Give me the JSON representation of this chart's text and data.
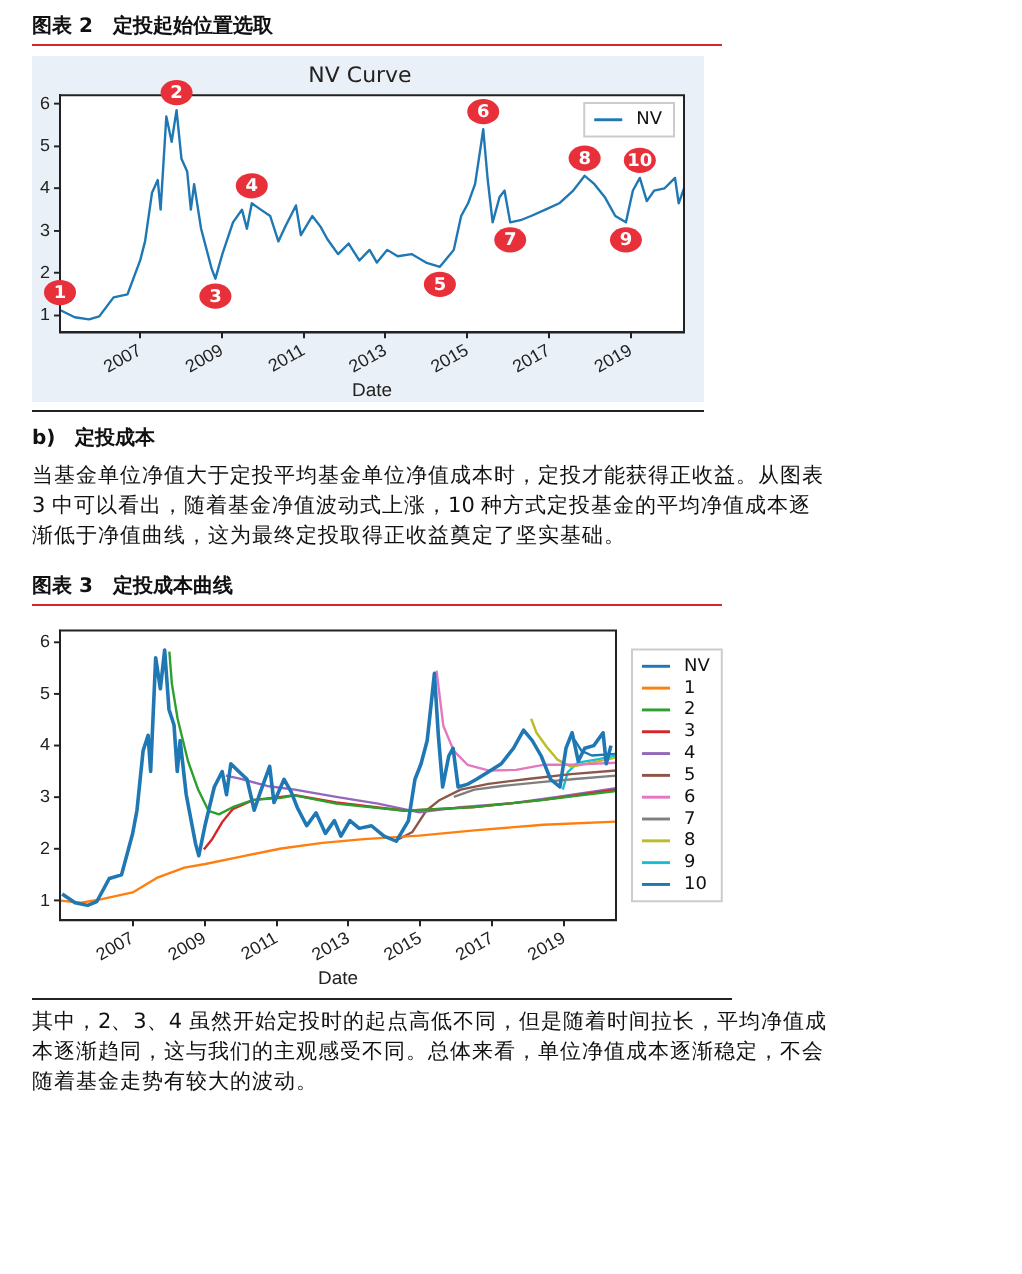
{
  "chart_data": [
    {
      "type": "line",
      "title": "图表 2　定投起始位置选取",
      "subtitle": "NV Curve",
      "xlabel": "Date",
      "xlim": [
        2005.04,
        2020.3
      ],
      "xticks": [
        2007,
        2009,
        2011,
        2013,
        2015,
        2017,
        2019
      ],
      "ylim": [
        0.6,
        6.2
      ],
      "yticks": [
        1,
        2,
        3,
        4,
        5,
        6
      ],
      "legend": "top right",
      "series": [
        {
          "name": "NV",
          "color": "#1f77b4",
          "x": [
            2005.04,
            2005.4,
            2005.75,
            2006.0,
            2006.35,
            2006.69,
            2007.0,
            2007.12,
            2007.29,
            2007.43,
            2007.5,
            2007.64,
            2007.77,
            2007.89,
            2008.01,
            2008.15,
            2008.24,
            2008.32,
            2008.49,
            2008.75,
            2008.84,
            2009.01,
            2009.27,
            2009.49,
            2009.61,
            2009.73,
            2009.95,
            2010.18,
            2010.38,
            2010.55,
            2010.81,
            2010.93,
            2011.21,
            2011.41,
            2011.58,
            2011.84,
            2012.1,
            2012.36,
            2012.61,
            2012.79,
            2013.04,
            2013.3,
            2013.64,
            2013.99,
            2014.33,
            2014.67,
            2014.85,
            2015.02,
            2015.19,
            2015.33,
            2015.39,
            2015.5,
            2015.62,
            2015.79,
            2015.91,
            2016.05,
            2016.3,
            2016.56,
            2016.91,
            2017.25,
            2017.59,
            2017.87,
            2018.11,
            2018.36,
            2018.62,
            2018.88,
            2019.05,
            2019.22,
            2019.39,
            2019.57,
            2019.82,
            2020.08,
            2020.17,
            2020.3
          ],
          "values": [
            1.13,
            0.96,
            0.91,
            0.98,
            1.43,
            1.5,
            2.3,
            2.75,
            3.9,
            4.2,
            3.5,
            5.7,
            5.1,
            5.85,
            4.7,
            4.4,
            3.5,
            4.1,
            3.05,
            2.1,
            1.87,
            2.45,
            3.2,
            3.5,
            3.05,
            3.65,
            3.5,
            3.35,
            2.75,
            3.1,
            3.6,
            2.9,
            3.35,
            3.1,
            2.8,
            2.45,
            2.7,
            2.3,
            2.55,
            2.25,
            2.55,
            2.4,
            2.45,
            2.25,
            2.15,
            2.55,
            3.35,
            3.65,
            4.1,
            5.0,
            5.4,
            4.2,
            3.2,
            3.8,
            3.95,
            3.2,
            3.25,
            3.35,
            3.5,
            3.65,
            3.95,
            4.3,
            4.1,
            3.8,
            3.35,
            3.2,
            3.95,
            4.25,
            3.7,
            3.95,
            4.0,
            4.25,
            3.65,
            4.0
          ]
        }
      ],
      "annotations": [
        {
          "text": "1",
          "x": 2005.04,
          "y": 1.13
        },
        {
          "text": "2",
          "x": 2007.89,
          "y": 5.85
        },
        {
          "text": "3",
          "x": 2008.84,
          "y": 1.87
        },
        {
          "text": "4",
          "x": 2009.73,
          "y": 3.65
        },
        {
          "text": "5",
          "x": 2014.33,
          "y": 2.15
        },
        {
          "text": "6",
          "x": 2015.39,
          "y": 5.4
        },
        {
          "text": "7",
          "x": 2016.05,
          "y": 3.2
        },
        {
          "text": "8",
          "x": 2017.87,
          "y": 4.3
        },
        {
          "text": "9",
          "x": 2018.88,
          "y": 3.2
        },
        {
          "text": "10",
          "x": 2019.22,
          "y": 4.25
        },
        "b)　定投成本",
        "当基金单位净值大于定投平均基金单位净值成本时，定投才能获得正收益。从图表 3 中可以看出，随着基金净值波动式上涨，10 种方式定投基金的平均净值成本逐渐低于净值曲线，这为最终定投取得正收益奠定了坚实基础。"
      ]
    },
    {
      "type": "line",
      "title": "图表 3　定投成本曲线",
      "xlabel": "Date",
      "xlim": [
        2004.98,
        2020.44
      ],
      "xticks": [
        2007,
        2009,
        2011,
        2013,
        2015,
        2017,
        2019
      ],
      "ylim": [
        0.62,
        6.23
      ],
      "yticks": [
        1,
        2,
        3,
        4,
        5,
        6
      ],
      "legend": "right",
      "series": [
        {
          "name": "NV",
          "color": "#1f77b4",
          "x": [
            2005.04,
            2005.4,
            2005.75,
            2006.0,
            2006.35,
            2006.69,
            2007.0,
            2007.12,
            2007.29,
            2007.43,
            2007.5,
            2007.64,
            2007.77,
            2007.89,
            2008.01,
            2008.15,
            2008.24,
            2008.32,
            2008.49,
            2008.75,
            2008.84,
            2009.01,
            2009.27,
            2009.49,
            2009.61,
            2009.73,
            2009.95,
            2010.18,
            2010.38,
            2010.55,
            2010.81,
            2010.93,
            2011.21,
            2011.41,
            2011.58,
            2011.84,
            2012.1,
            2012.36,
            2012.61,
            2012.79,
            2013.04,
            2013.3,
            2013.64,
            2013.99,
            2014.33,
            2014.67,
            2014.85,
            2015.02,
            2015.19,
            2015.33,
            2015.39,
            2015.5,
            2015.62,
            2015.79,
            2015.91,
            2016.05,
            2016.3,
            2016.56,
            2016.91,
            2017.25,
            2017.59,
            2017.87,
            2018.11,
            2018.36,
            2018.62,
            2018.88,
            2019.05,
            2019.22,
            2019.39,
            2019.57,
            2019.82,
            2020.08,
            2020.17,
            2020.3
          ],
          "values": [
            1.13,
            0.96,
            0.91,
            0.98,
            1.43,
            1.5,
            2.3,
            2.75,
            3.9,
            4.2,
            3.5,
            5.7,
            5.1,
            5.85,
            4.7,
            4.4,
            3.5,
            4.1,
            3.05,
            2.1,
            1.87,
            2.45,
            3.2,
            3.5,
            3.05,
            3.65,
            3.5,
            3.35,
            2.75,
            3.1,
            3.6,
            2.9,
            3.35,
            3.1,
            2.8,
            2.45,
            2.7,
            2.3,
            2.55,
            2.25,
            2.55,
            2.4,
            2.45,
            2.25,
            2.15,
            2.55,
            3.35,
            3.65,
            4.1,
            5.0,
            5.4,
            4.2,
            3.2,
            3.8,
            3.95,
            3.2,
            3.25,
            3.35,
            3.5,
            3.65,
            3.95,
            4.3,
            4.1,
            3.8,
            3.35,
            3.2,
            3.95,
            4.25,
            3.7,
            3.95,
            4.0,
            4.25,
            3.65,
            4.0
          ]
        },
        {
          "name": "1",
          "color": "#ff7f0e",
          "x": [
            2005.0,
            2005.56,
            2006.14,
            2007.0,
            2007.67,
            2008.44,
            2009.02,
            2009.98,
            2011.13,
            2012.28,
            2013.43,
            2014.97,
            2016.5,
            2018.42,
            2020.44
          ],
          "values": [
            1.0,
            0.96,
            1.03,
            1.16,
            1.44,
            1.64,
            1.71,
            1.85,
            2.01,
            2.12,
            2.19,
            2.26,
            2.36,
            2.47,
            2.53
          ]
        },
        {
          "name": "2",
          "color": "#2ca02c",
          "x": [
            2008.02,
            2008.09,
            2008.25,
            2008.54,
            2008.82,
            2009.11,
            2009.4,
            2009.78,
            2010.36,
            2011.13,
            2011.51,
            2012.66,
            2014.58,
            2016.5,
            2018.42,
            2020.44
          ],
          "values": [
            5.82,
            5.2,
            4.52,
            3.7,
            3.15,
            2.74,
            2.67,
            2.81,
            2.95,
            2.99,
            3.04,
            2.88,
            2.74,
            2.81,
            2.95,
            3.12
          ]
        },
        {
          "name": "3",
          "color": "#d62728",
          "x": [
            2008.98,
            2009.21,
            2009.5,
            2009.78,
            2010.36,
            2011.13,
            2011.51,
            2012.66,
            2014.58,
            2016.5,
            2018.42,
            2020.44
          ],
          "values": [
            1.99,
            2.19,
            2.53,
            2.77,
            2.95,
            3.01,
            3.04,
            2.9,
            2.74,
            2.81,
            2.95,
            3.15
          ]
        },
        {
          "name": "4",
          "color": "#9467bd",
          "x": [
            2009.59,
            2009.98,
            2010.74,
            2011.51,
            2012.66,
            2013.82,
            2014.97,
            2016.12,
            2017.46,
            2018.81,
            2020.44
          ],
          "values": [
            3.42,
            3.36,
            3.22,
            3.15,
            3.01,
            2.88,
            2.71,
            2.81,
            2.88,
            3.01,
            3.18
          ]
        },
        {
          "name": "5",
          "color": "#8c564b",
          "x": [
            2014.39,
            2014.78,
            2015.16,
            2015.54,
            2016.12,
            2016.89,
            2018.04,
            2019.19,
            2020.44
          ],
          "values": [
            2.19,
            2.33,
            2.74,
            2.95,
            3.15,
            3.26,
            3.36,
            3.45,
            3.52
          ]
        },
        {
          "name": "6",
          "color": "#e377c2",
          "x": [
            2015.45,
            2015.64,
            2015.93,
            2016.31,
            2016.89,
            2017.66,
            2018.42,
            2019.19,
            2020.44
          ],
          "values": [
            5.45,
            4.38,
            3.9,
            3.63,
            3.52,
            3.53,
            3.63,
            3.63,
            3.67
          ]
        },
        {
          "name": "7",
          "color": "#7f7f7f",
          "x": [
            2015.93,
            2016.5,
            2017.27,
            2018.42,
            2019.38,
            2020.44
          ],
          "values": [
            3.01,
            3.15,
            3.22,
            3.3,
            3.36,
            3.42
          ]
        },
        {
          "name": "8",
          "color": "#bcbd22",
          "x": [
            2018.08,
            2018.23,
            2018.52,
            2018.81,
            2019.19,
            2019.77,
            2020.44
          ],
          "values": [
            4.52,
            4.25,
            3.97,
            3.73,
            3.59,
            3.67,
            3.77
          ]
        },
        {
          "name": "9",
          "color": "#17becf",
          "x": [
            2018.96,
            2019.1,
            2019.38,
            2019.96,
            2020.44
          ],
          "values": [
            3.15,
            3.49,
            3.67,
            3.74,
            3.81
          ]
        },
        {
          "name": "10",
          "color": "#1f77b4",
          "x": [
            2019.29,
            2019.48,
            2019.77,
            2020.44
          ],
          "values": [
            4.11,
            3.9,
            3.81,
            3.84
          ]
        }
      ],
      "annotations": [
        "其中，2、3、4 虽然开始定投时的起点高低不同，但是随着时间拉长，平均净值成本逐渐趋同，这与我们的主观感受不同。总体来看，单位净值成本逐渐稳定，不会随着基金走势有较大的波动。"
      ]
    }
  ]
}
